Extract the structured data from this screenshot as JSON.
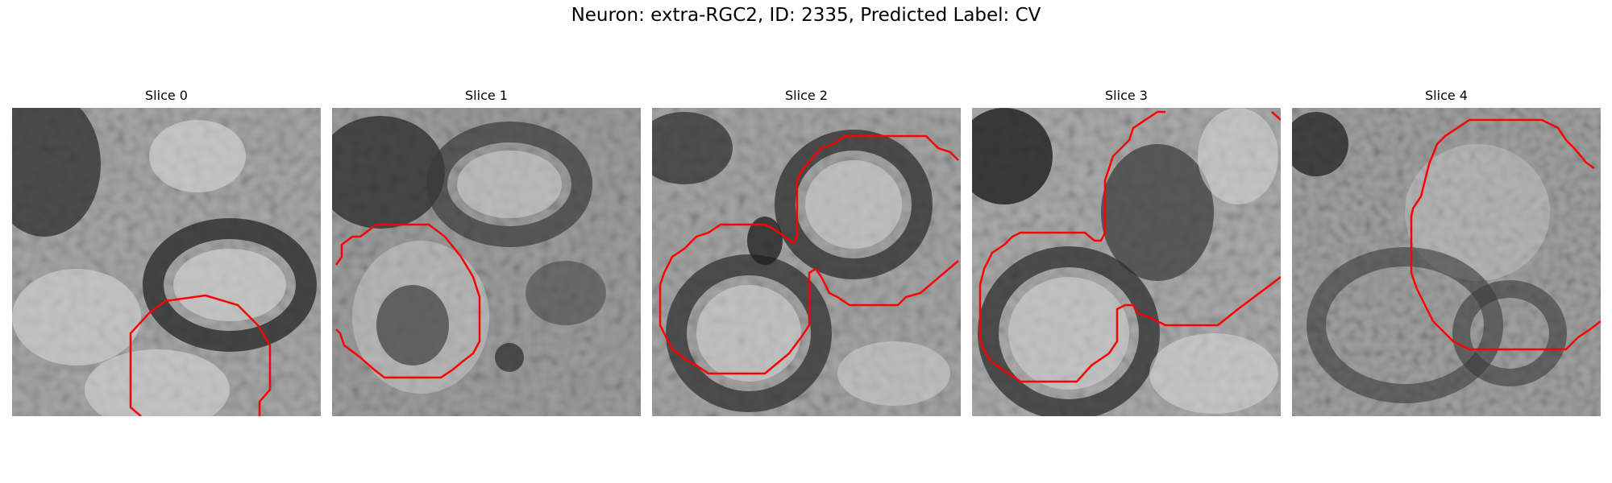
{
  "figure": {
    "title": "Neuron: extra-RGC2, ID: 2335, Predicted Label: CV",
    "contour_color": "#ff0000"
  },
  "panels": [
    {
      "title": "Slice 0"
    },
    {
      "title": "Slice 1"
    },
    {
      "title": "Slice 2"
    },
    {
      "title": "Slice 3"
    },
    {
      "title": "Slice 4"
    }
  ]
}
